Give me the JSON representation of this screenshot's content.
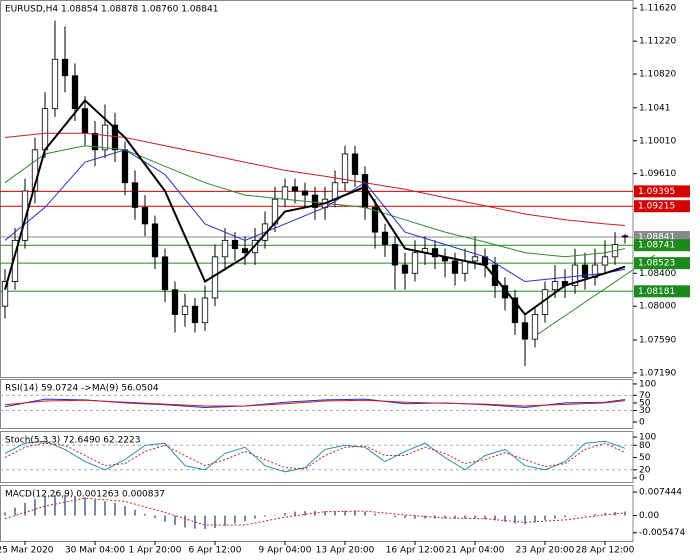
{
  "chart_data": [
    {
      "type": "candlestick",
      "title": "EURUSD,H4  1.08854 1.08878 1.08760 1.08841",
      "xlim": [
        -0.5,
        62.8
      ],
      "ylim": [
        1.0714,
        1.1172
      ],
      "yticks": [
        {
          "value": 1.1162,
          "label": "1.11620"
        },
        {
          "value": 1.1122,
          "label": "1.11220"
        },
        {
          "value": 1.1082,
          "label": "1.10820"
        },
        1.1041,
        {
          "value": 1.1001,
          "label": "1.10010"
        },
        {
          "value": 1.0961,
          "label": "1.09610"
        },
        {
          "value": 1.084,
          "label": "1.08400"
        },
        {
          "value": 1.08,
          "label": "1.08000"
        },
        {
          "value": 1.0759,
          "label": "1.07590"
        },
        {
          "value": 1.0719,
          "label": "1.07190"
        }
      ],
      "levels": [
        {
          "value": 1.09395,
          "color": "#d40000"
        },
        {
          "value": 1.09215,
          "color": "#d40000"
        },
        {
          "value": 1.08841,
          "color": "#8a8a8a"
        },
        {
          "value": 1.08741,
          "color": "#1e8a1e"
        },
        {
          "value": 1.08523,
          "color": "#1e8a1e"
        },
        {
          "value": 1.08181,
          "color": "#1e8a1e"
        }
      ],
      "open": [
        1.08,
        1.083,
        1.088,
        1.094,
        1.099,
        1.104,
        1.11,
        1.108,
        1.104,
        1.101,
        1.099,
        1.102,
        1.099,
        1.095,
        1.092,
        1.09,
        1.086,
        1.082,
        1.079,
        1.08,
        1.078,
        1.081,
        1.086,
        1.088,
        1.087,
        1.0865,
        1.088,
        1.09,
        1.093,
        1.0945,
        1.094,
        1.0935,
        1.092,
        1.093,
        1.095,
        1.0985,
        1.096,
        1.092,
        1.089,
        1.0875,
        1.085,
        1.084,
        1.0865,
        1.087,
        1.086,
        1.0855,
        1.084,
        1.0855,
        1.086,
        1.085,
        1.0825,
        1.081,
        1.078,
        1.076,
        1.079,
        1.082,
        1.083,
        1.0825,
        1.085,
        1.0835,
        1.085,
        1.086,
        1.08854
      ],
      "high": [
        1.0845,
        1.0895,
        1.0955,
        1.1005,
        1.106,
        1.1147,
        1.114,
        1.1095,
        1.1055,
        1.1025,
        1.1045,
        1.1035,
        1.1,
        1.0965,
        1.0935,
        1.091,
        1.087,
        1.083,
        1.0815,
        1.081,
        1.0825,
        1.0875,
        1.0895,
        1.089,
        1.0885,
        1.0895,
        1.0915,
        1.0945,
        1.0955,
        1.0955,
        1.095,
        1.0945,
        1.0945,
        1.0965,
        1.0995,
        1.0995,
        1.097,
        1.093,
        1.09,
        1.0885,
        1.0865,
        1.088,
        1.0885,
        1.088,
        1.087,
        1.0865,
        1.087,
        1.0885,
        1.087,
        1.086,
        1.0835,
        1.082,
        1.079,
        1.08,
        1.083,
        1.085,
        1.0845,
        1.087,
        1.0865,
        1.087,
        1.088,
        1.089,
        1.08878
      ],
      "low": [
        1.0785,
        1.082,
        1.087,
        1.0925,
        1.098,
        1.103,
        1.106,
        1.1025,
        1.0995,
        1.097,
        1.098,
        1.0975,
        1.0935,
        1.0905,
        1.0885,
        1.0845,
        1.0805,
        1.0768,
        1.0775,
        1.0768,
        1.077,
        1.08,
        1.0845,
        1.0855,
        1.085,
        1.085,
        1.087,
        1.089,
        1.092,
        1.0925,
        1.092,
        1.0905,
        1.0905,
        1.092,
        1.094,
        1.0945,
        1.0905,
        1.087,
        1.086,
        1.082,
        1.082,
        1.083,
        1.085,
        1.0845,
        1.0835,
        1.0825,
        1.083,
        1.0845,
        1.0835,
        1.081,
        1.0795,
        1.0765,
        1.0727,
        1.075,
        1.078,
        1.081,
        1.081,
        1.0815,
        1.082,
        1.0825,
        1.084,
        1.085,
        1.0876
      ],
      "close": [
        1.083,
        1.088,
        1.094,
        1.099,
        1.104,
        1.11,
        1.108,
        1.104,
        1.101,
        1.099,
        1.102,
        1.099,
        1.095,
        1.092,
        1.09,
        1.086,
        1.082,
        1.079,
        1.08,
        1.078,
        1.081,
        1.086,
        1.088,
        1.087,
        1.0865,
        1.088,
        1.09,
        1.093,
        1.0945,
        1.094,
        1.0935,
        1.092,
        1.093,
        1.095,
        1.0985,
        1.096,
        1.092,
        1.089,
        1.0875,
        1.085,
        1.084,
        1.0865,
        1.087,
        1.086,
        1.0855,
        1.084,
        1.0855,
        1.086,
        1.085,
        1.0825,
        1.081,
        1.078,
        1.076,
        1.079,
        1.082,
        1.083,
        1.0825,
        1.085,
        1.0835,
        1.085,
        1.086,
        1.0875,
        1.08841
      ],
      "series": [
        {
          "color": "#cc1f1f",
          "x": [
            0,
            4,
            8,
            12,
            16,
            20,
            24,
            28,
            32,
            36,
            40,
            44,
            48,
            52,
            56,
            60,
            62
          ],
          "values": [
            1.1005,
            1.101,
            1.101,
            1.1005,
            1.0995,
            1.0985,
            1.0975,
            1.0965,
            1.0958,
            1.095,
            1.0942,
            1.0932,
            1.0922,
            1.0912,
            1.0905,
            1.09,
            1.0898
          ]
        },
        {
          "color": "#2e8b2e",
          "x": [
            0,
            4,
            8,
            12,
            16,
            20,
            24,
            28,
            32,
            36,
            40,
            44,
            48,
            52,
            56,
            60,
            62
          ],
          "values": [
            1.095,
            1.0985,
            1.0995,
            1.099,
            1.097,
            1.095,
            1.0935,
            1.093,
            1.0925,
            1.092,
            1.0905,
            1.089,
            1.0878,
            1.0865,
            1.086,
            1.0865,
            1.087
          ]
        },
        {
          "color": "#2233cc",
          "x": [
            0,
            4,
            8,
            12,
            16,
            20,
            24,
            28,
            32,
            36,
            40,
            44,
            48,
            52,
            56,
            60,
            62
          ],
          "values": [
            1.088,
            1.092,
            1.0975,
            1.099,
            1.096,
            1.09,
            1.088,
            1.09,
            1.092,
            1.095,
            1.089,
            1.0875,
            1.086,
            1.083,
            1.0835,
            1.084,
            1.0845
          ]
        },
        {
          "color": "#000000",
          "width": 2,
          "x": [
            0,
            4,
            8,
            12,
            16,
            20,
            24,
            28,
            32,
            36,
            40,
            44,
            48,
            52,
            56,
            60,
            62
          ],
          "values": [
            1.082,
            1.099,
            1.105,
            1.1005,
            1.094,
            1.083,
            1.086,
            1.0915,
            1.0925,
            1.0945,
            1.087,
            1.086,
            1.085,
            1.079,
            1.0825,
            1.084,
            1.0848
          ]
        }
      ]
    },
    {
      "type": "line",
      "title": "RSI(14) 59.0724 ->MA(9) 56.0504",
      "xlim": [
        -0.5,
        62.8
      ],
      "ylim": [
        -16,
        113
      ],
      "yticks": [
        100,
        70,
        50,
        30,
        0
      ],
      "levels": [
        70,
        30
      ],
      "series": [
        {
          "color": "#2233cc",
          "x": [
            0,
            4,
            8,
            12,
            16,
            20,
            24,
            28,
            32,
            36,
            40,
            44,
            48,
            52,
            56,
            60,
            62
          ],
          "values": [
            40,
            60,
            58,
            50,
            45,
            38,
            42,
            52,
            58,
            60,
            48,
            50,
            45,
            38,
            50,
            52,
            59.0724
          ]
        },
        {
          "color": "#cc1f1f",
          "x": [
            0,
            4,
            8,
            12,
            16,
            20,
            24,
            28,
            32,
            36,
            40,
            44,
            48,
            52,
            56,
            60,
            62
          ],
          "values": [
            45,
            55,
            57,
            52,
            47,
            42,
            42,
            48,
            55,
            57,
            52,
            49,
            47,
            42,
            46,
            50,
            56.0504
          ]
        }
      ]
    },
    {
      "type": "line",
      "title": "Stoch(5,3,3) 72.6490 62.2223",
      "xlim": [
        -0.5,
        62.8
      ],
      "ylim": [
        -10,
        115
      ],
      "yticks": [
        100,
        80,
        50,
        20,
        0
      ],
      "levels": [
        80,
        20
      ],
      "series": [
        {
          "color": "#2a8fb0",
          "x": [
            0,
            2,
            4,
            6,
            8,
            10,
            12,
            14,
            16,
            18,
            20,
            22,
            24,
            26,
            28,
            30,
            32,
            34,
            36,
            38,
            40,
            42,
            44,
            46,
            48,
            50,
            52,
            54,
            56,
            58,
            60,
            62
          ],
          "values": [
            60,
            85,
            90,
            70,
            40,
            20,
            45,
            80,
            85,
            30,
            20,
            60,
            75,
            30,
            15,
            25,
            70,
            80,
            75,
            40,
            65,
            85,
            50,
            20,
            55,
            70,
            30,
            20,
            40,
            85,
            90,
            72.649
          ]
        },
        {
          "color": "#cc1f1f",
          "dash": true,
          "x": [
            0,
            2,
            4,
            6,
            8,
            10,
            12,
            14,
            16,
            18,
            20,
            22,
            24,
            26,
            28,
            30,
            32,
            34,
            36,
            38,
            40,
            42,
            44,
            46,
            48,
            50,
            52,
            54,
            56,
            58,
            60,
            62
          ],
          "values": [
            50,
            75,
            85,
            80,
            55,
            30,
            35,
            65,
            80,
            55,
            30,
            45,
            65,
            45,
            25,
            22,
            55,
            75,
            78,
            55,
            55,
            75,
            60,
            35,
            45,
            62,
            45,
            28,
            35,
            70,
            85,
            62.2223
          ]
        }
      ]
    },
    {
      "type": "histogram",
      "title": "MACD(12,26,9) 0.001263 0.000837",
      "xlim": [
        -0.5,
        62.8
      ],
      "ylim": [
        -0.0081,
        0.0097
      ],
      "yticks": [
        0.007444,
        {
          "value": 0,
          "label": "0.00"
        },
        -0.005474
      ],
      "values": [
        0.001,
        0.0025,
        0.004,
        0.0052,
        0.006,
        0.0065,
        0.0066,
        0.0062,
        0.0058,
        0.005,
        0.0045,
        0.004,
        0.003,
        0.0018,
        0.0005,
        -0.0008,
        -0.002,
        -0.003,
        -0.0038,
        -0.0042,
        -0.0043,
        -0.004,
        -0.0033,
        -0.0025,
        -0.0018,
        -0.001,
        -0.0004,
        0.0002,
        0.0008,
        0.0012,
        0.0014,
        0.0015,
        0.0014,
        0.0013,
        0.0015,
        0.0016,
        0.0012,
        0.0006,
        0.0,
        -0.0005,
        -0.0008,
        -0.001,
        -0.001,
        -0.0009,
        -0.0009,
        -0.001,
        -0.001,
        -0.0009,
        -0.0012,
        -0.0015,
        -0.002,
        -0.0025,
        -0.0028,
        -0.0022,
        -0.0015,
        -0.001,
        -0.0006,
        -0.0002,
        0.0002,
        0.0005,
        0.0008,
        0.0011,
        0.001263
      ],
      "color": "#7a8aa6",
      "series": [
        {
          "color": "#cc1f1f",
          "dash": true,
          "x": [
            0,
            4,
            8,
            12,
            16,
            20,
            24,
            28,
            32,
            36,
            40,
            44,
            48,
            52,
            56,
            60,
            62
          ],
          "values": [
            -0.001,
            0.003,
            0.0055,
            0.0045,
            0.001,
            -0.003,
            -0.003,
            -0.0005,
            0.0012,
            0.0014,
            0.0002,
            -0.0008,
            -0.001,
            -0.0022,
            -0.0014,
            0.0002,
            0.000837
          ]
        }
      ],
      "xticks": [
        {
          "value": 2,
          "label": "25 Mar 2020"
        },
        {
          "value": 9,
          "label": "30 Mar 04:00"
        },
        {
          "value": 15,
          "label": "1 Apr 20:00"
        },
        {
          "value": 21,
          "label": "6 Apr 12:00"
        },
        {
          "value": 28,
          "label": "9 Apr 04:00"
        },
        {
          "value": 34,
          "label": "13 Apr 20:00"
        },
        {
          "value": 41,
          "label": "16 Apr 12:00"
        },
        {
          "value": 47,
          "label": "21 Apr 04:00"
        },
        {
          "value": 54,
          "label": "23 Apr 20:00"
        },
        {
          "value": 60,
          "label": "28 Apr 12:00"
        }
      ]
    }
  ]
}
